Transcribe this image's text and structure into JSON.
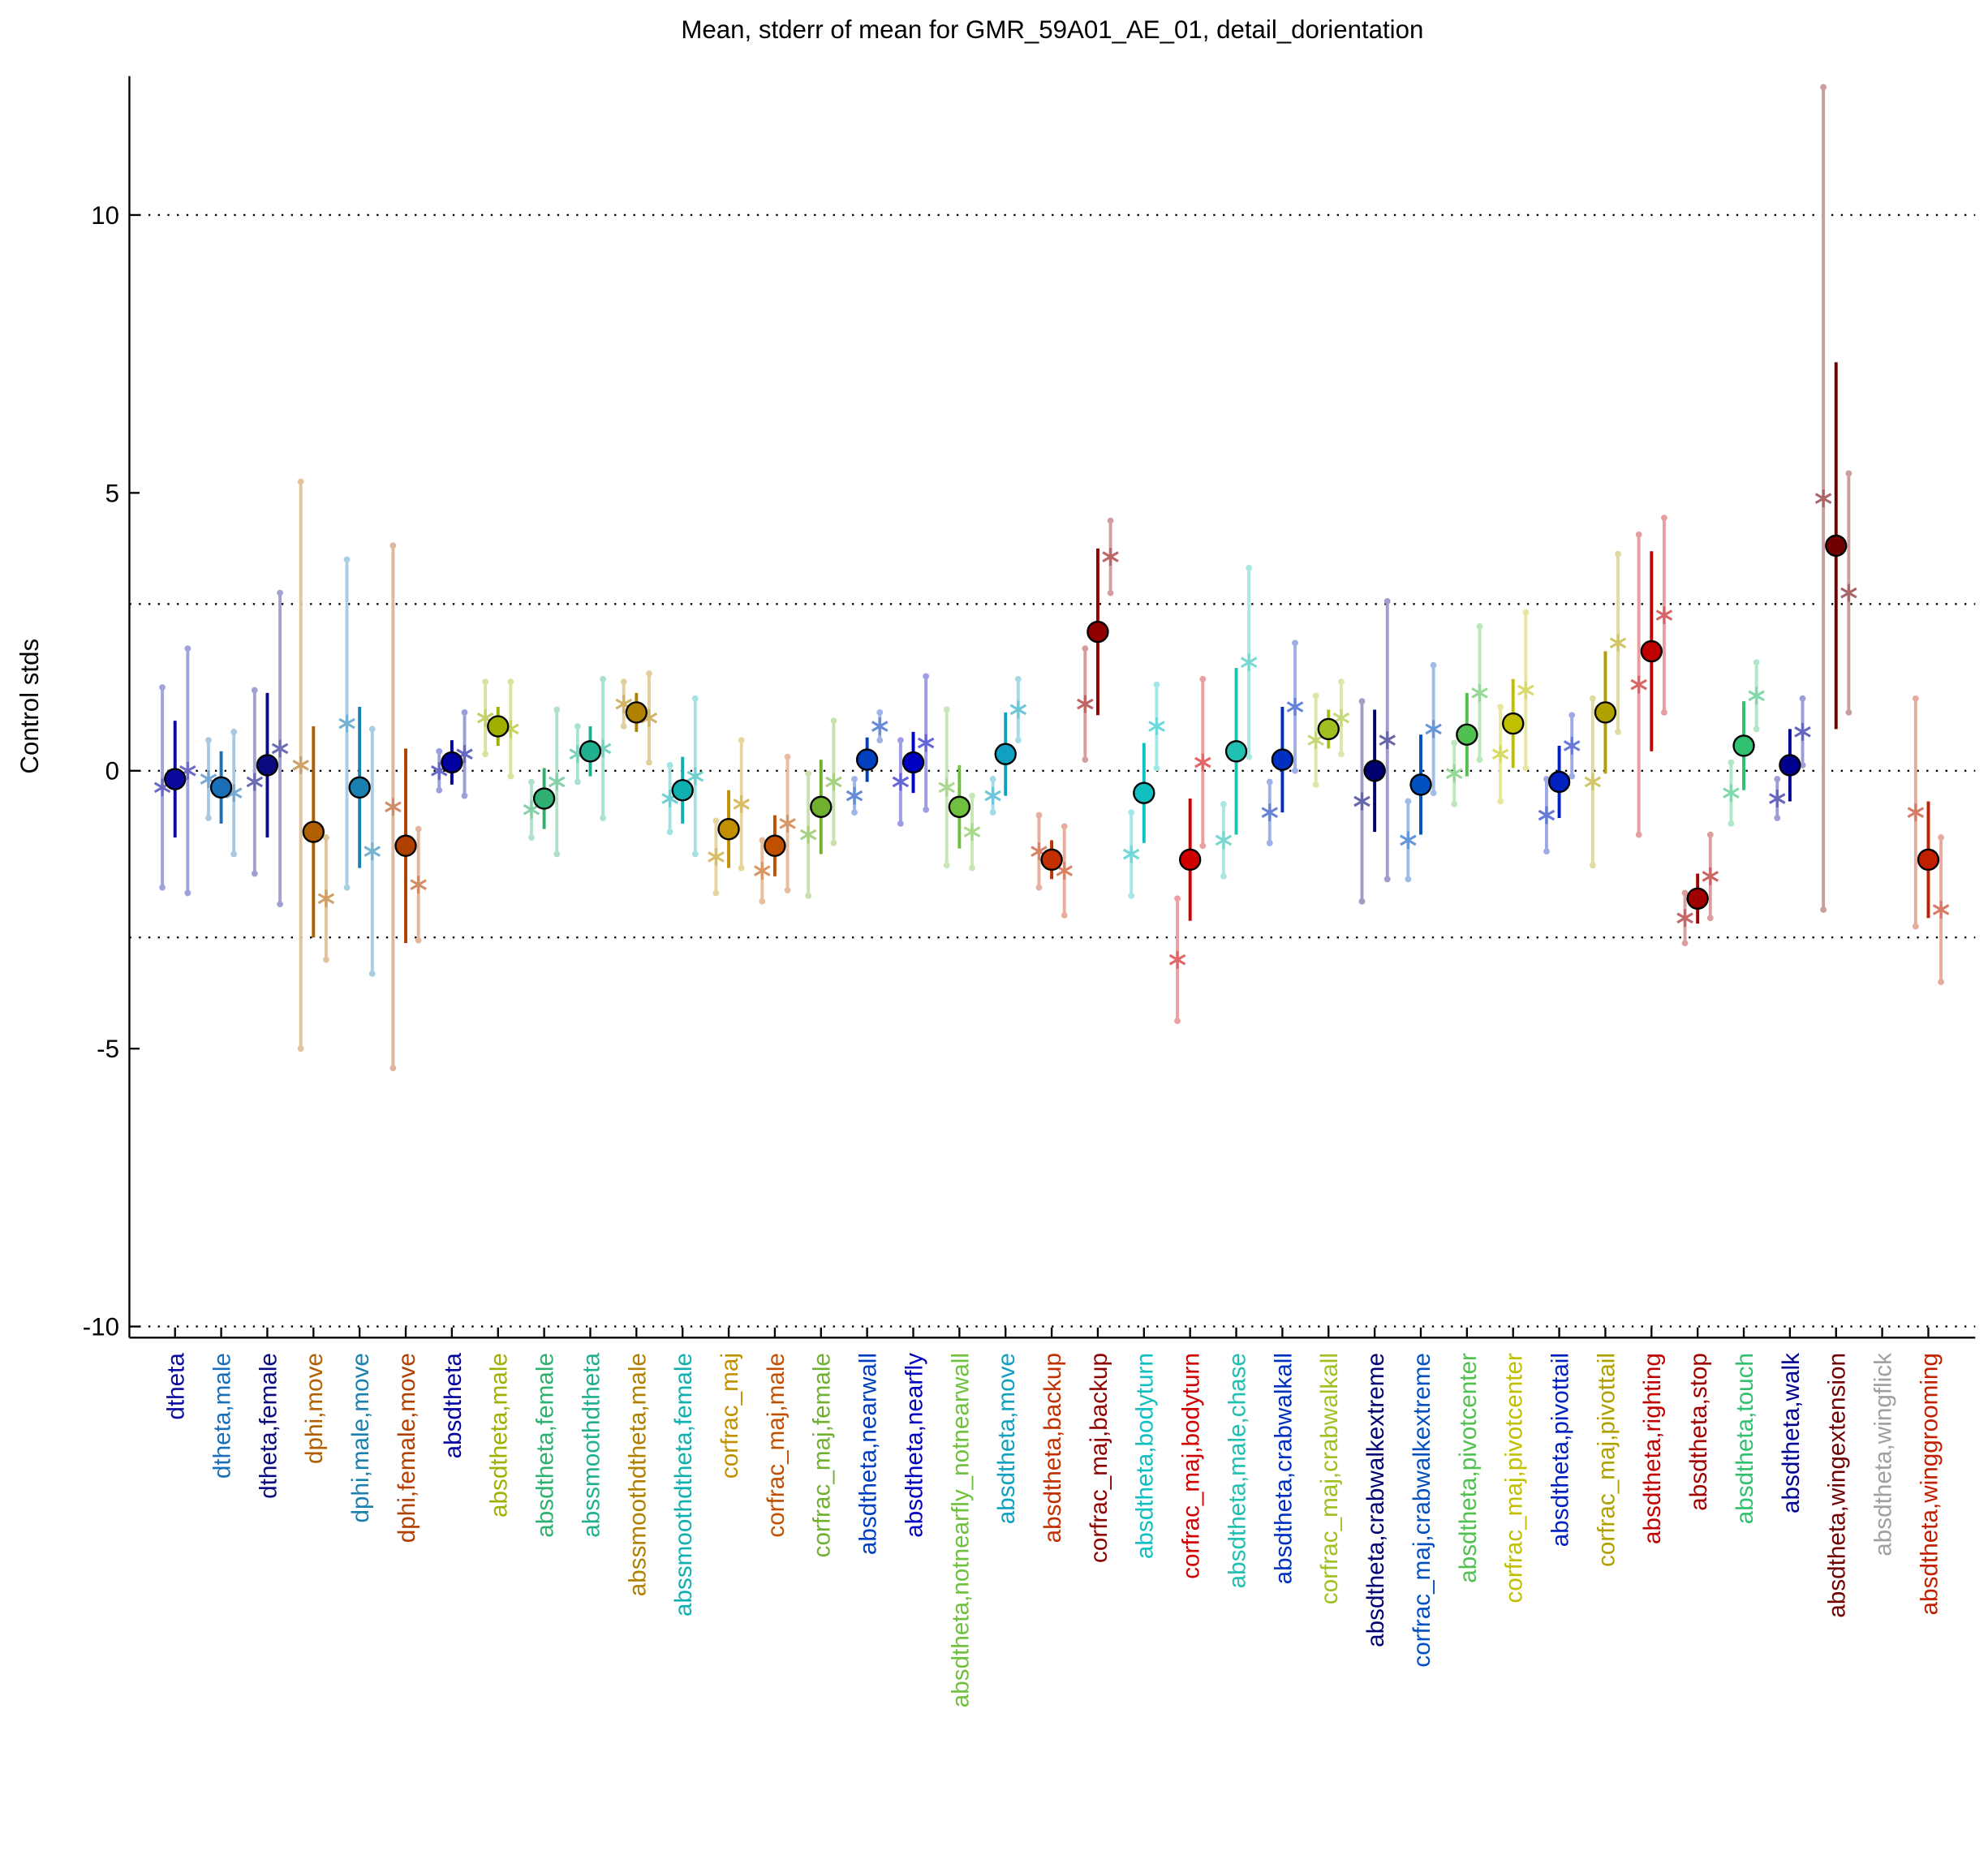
{
  "chart_data": {
    "type": "errorbar",
    "title": "Mean, stderr of mean for GMR_59A01_AE_01, detail_dorientation",
    "y_label": "Control stds",
    "categories": [
      "dtheta",
      "dtheta,male",
      "dtheta,female",
      "dphi,move",
      "dphi,male,move",
      "dphi,female,move",
      "absdtheta",
      "absdtheta,male",
      "absdtheta,female",
      "abssmoothdtheta",
      "abssmoothdtheta,male",
      "abssmoothdtheta,female",
      "corfrac_maj",
      "corfrac_maj,male",
      "corfrac_maj,female",
      "absdtheta,nearwall",
      "absdtheta,nearfly",
      "absdtheta,notnearfly_notnearwall",
      "absdtheta,move",
      "absdtheta,backup",
      "corfrac_maj,backup",
      "absdtheta,bodyturn",
      "corfrac_maj,bodyturn",
      "absdtheta,male,chase",
      "absdtheta,crabwalkall",
      "corfrac_maj,crabwalkall",
      "absdtheta,crabwalkextreme",
      "corfrac_maj,crabwalkextreme",
      "absdtheta,pivotcenter",
      "corfrac_maj,pivotcenter",
      "absdtheta,pivottail",
      "corfrac_maj,pivottail",
      "absdtheta,righting",
      "absdtheta,stop",
      "absdtheta,touch",
      "absdtheta,walk",
      "absdtheta,wingextension",
      "absdtheta,wingflick",
      "absdtheta,winggrooming"
    ],
    "colors": [
      "#0a0aa0",
      "#1a70b8",
      "#0a0a80",
      "#b06000",
      "#1a80b0",
      "#b04000",
      "#0000a0",
      "#a0b000",
      "#30b070",
      "#20b090",
      "#b08000",
      "#10b0b0",
      "#c09000",
      "#c05000",
      "#70b030",
      "#0040c0",
      "#0000c0",
      "#70c040",
      "#10a0c0",
      "#c03000",
      "#900000",
      "#10c0c0",
      "#d00000",
      "#20c0b0",
      "#0030c0",
      "#a0c020",
      "#000070",
      "#0050c0",
      "#50c050",
      "#c0c000",
      "#0020c0",
      "#b0a000",
      "#c00000",
      "#a00000",
      "#30c070",
      "#000090",
      "#700000",
      "#a0a0a0",
      "#c02000"
    ],
    "series": [
      {
        "marker": "circle",
        "offset": 0,
        "values": [
          -0.15,
          -0.3,
          0.1,
          -1.1,
          -0.3,
          -1.35,
          0.15,
          0.8,
          -0.5,
          0.35,
          1.05,
          -0.35,
          -1.05,
          -1.35,
          -0.65,
          0.2,
          0.15,
          -0.65,
          0.3,
          -1.6,
          2.5,
          -0.4,
          -1.6,
          0.35,
          0.2,
          0.75,
          0.0,
          -0.25,
          0.65,
          0.85,
          -0.2,
          1.05,
          2.15,
          -2.3,
          0.45,
          0.1,
          4.05,
          null,
          -1.6
        ],
        "errors": [
          1.05,
          0.65,
          1.3,
          1.9,
          1.45,
          1.75,
          0.4,
          0.35,
          0.55,
          0.45,
          0.35,
          0.6,
          0.7,
          0.55,
          0.85,
          0.4,
          0.55,
          0.75,
          0.75,
          0.35,
          1.5,
          0.9,
          1.1,
          1.5,
          0.95,
          0.35,
          1.1,
          0.9,
          0.75,
          0.8,
          0.65,
          1.1,
          1.8,
          0.45,
          0.8,
          0.65,
          3.3,
          null,
          1.05
        ]
      },
      {
        "marker": "star",
        "offset": -1,
        "values": [
          -0.3,
          -0.15,
          -0.2,
          0.1,
          0.85,
          -0.65,
          0.0,
          0.95,
          -0.7,
          0.3,
          1.2,
          -0.5,
          -1.55,
          -1.8,
          -1.15,
          -0.45,
          -0.2,
          -0.3,
          -0.45,
          -1.45,
          1.2,
          -1.5,
          -3.4,
          -1.25,
          -0.75,
          0.55,
          -0.55,
          -1.25,
          -0.05,
          0.3,
          -0.8,
          -0.2,
          1.55,
          -2.65,
          -0.4,
          -0.5,
          4.9,
          null,
          -0.75
        ],
        "errors": [
          1.8,
          0.7,
          1.65,
          5.1,
          2.95,
          4.7,
          0.35,
          0.65,
          0.5,
          0.5,
          0.4,
          0.6,
          0.65,
          0.55,
          1.1,
          0.3,
          0.75,
          1.4,
          0.3,
          0.65,
          1.0,
          0.75,
          1.1,
          0.65,
          0.55,
          0.8,
          1.8,
          0.7,
          0.55,
          0.85,
          0.65,
          1.5,
          2.7,
          0.45,
          0.55,
          0.35,
          7.4,
          null,
          2.05
        ]
      },
      {
        "marker": "star",
        "offset": 1,
        "values": [
          0.0,
          -0.4,
          0.4,
          -2.3,
          -1.45,
          -2.05,
          0.3,
          0.75,
          -0.2,
          0.4,
          0.95,
          -0.1,
          -0.6,
          -0.95,
          -0.2,
          0.8,
          0.5,
          -1.1,
          1.1,
          -1.8,
          3.85,
          0.8,
          0.15,
          1.95,
          1.15,
          0.95,
          0.55,
          0.75,
          1.4,
          1.45,
          0.45,
          2.3,
          2.8,
          -1.9,
          1.35,
          0.7,
          3.2,
          null,
          -2.5
        ],
        "errors": [
          2.2,
          1.1,
          2.8,
          1.1,
          2.2,
          1.0,
          0.75,
          0.85,
          1.3,
          1.25,
          0.8,
          1.4,
          1.15,
          1.2,
          1.1,
          0.25,
          1.2,
          0.65,
          0.55,
          0.8,
          0.65,
          0.75,
          1.5,
          1.7,
          1.15,
          0.65,
          2.5,
          1.15,
          1.2,
          1.4,
          0.55,
          1.6,
          1.75,
          0.75,
          0.6,
          0.6,
          2.15,
          null,
          1.3
        ]
      }
    ],
    "ylim": [
      -10.2,
      12.5
    ],
    "yticks": [
      -10,
      -5,
      0,
      5,
      10
    ],
    "hlines": [
      -10,
      -3,
      0,
      3,
      10
    ]
  }
}
